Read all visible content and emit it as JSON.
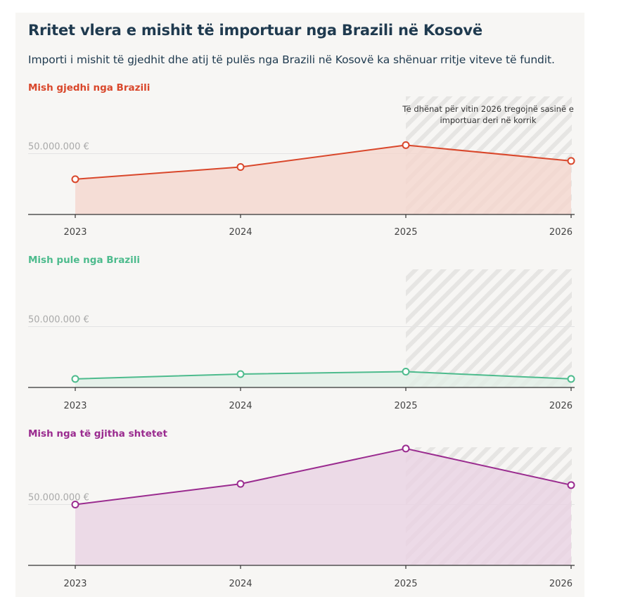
{
  "title": "Rritet vlera e mishit të importuar nga Brazili në Kosovë",
  "subtitle": "Importi i mishit të gjedhit dhe atij të pulës nga Brazili në Kosovë ka shënuar rritje viteve të fundit.",
  "chart_data": [
    {
      "type": "area",
      "title": "Mish gjedhi nga Brazili",
      "color": "#d9472b",
      "fill": "#f5d6cd",
      "x": [
        "2023",
        "2024",
        "2025",
        "2026"
      ],
      "values": [
        29000000,
        39000000,
        57000000,
        44000000
      ],
      "ylim": [
        0,
        100000000
      ],
      "reference_line": {
        "value": 50000000,
        "label": "50.000.000 €"
      },
      "note": [
        "Të dhënat për vitin 2026 tregojnë sasinë e",
        "importuar deri në korrik"
      ],
      "highlight_from": "2025",
      "grid": false
    },
    {
      "type": "area",
      "title": "Mish pule nga Brazili",
      "color": "#4dbb8d",
      "fill": "#e1efe7",
      "x": [
        "2023",
        "2024",
        "2025",
        "2026"
      ],
      "values": [
        7000000,
        11000000,
        13000000,
        7000000
      ],
      "ylim": [
        0,
        100000000
      ],
      "reference_line": {
        "value": 50000000,
        "label": "50.000.000 €"
      },
      "highlight_from": "2025",
      "grid": false
    },
    {
      "type": "area",
      "title": "Mish nga të gjitha shtetet",
      "color": "#9a2b8f",
      "fill": "#e9d2e3",
      "x": [
        "2023",
        "2024",
        "2025",
        "2026"
      ],
      "values": [
        50000000,
        67000000,
        96000000,
        66000000
      ],
      "ylim": [
        0,
        100000000
      ],
      "reference_line": {
        "value": 50000000,
        "label": "50.000.000 €"
      },
      "highlight_from": "2025",
      "grid": false
    }
  ]
}
